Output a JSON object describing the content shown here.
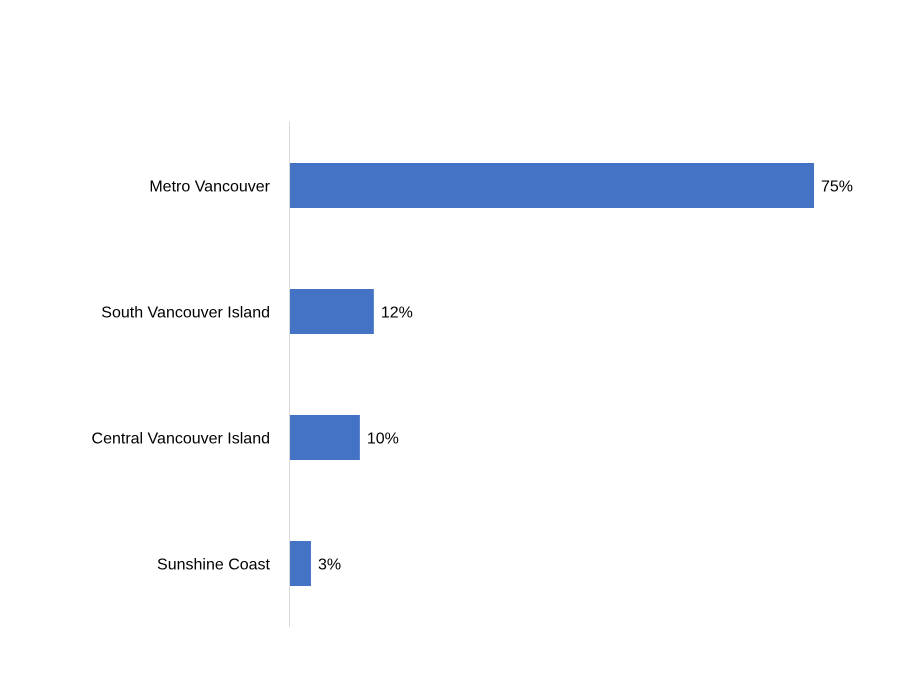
{
  "chart_data": {
    "type": "bar",
    "orientation": "horizontal",
    "title": "",
    "xlabel": "",
    "ylabel": "",
    "categories": [
      "Metro Vancouver",
      "South Vancouver Island",
      "Central Vancouver Island",
      "Sunshine Coast"
    ],
    "values": [
      75,
      12,
      10,
      3
    ],
    "data_labels": [
      "75%",
      "12%",
      "10%",
      "3%"
    ],
    "unit": "%",
    "xlim": [
      0,
      75
    ],
    "grid": false,
    "legend": "none",
    "colors": {
      "bar": "#4472C4",
      "axis": "#D9D9D9"
    }
  }
}
